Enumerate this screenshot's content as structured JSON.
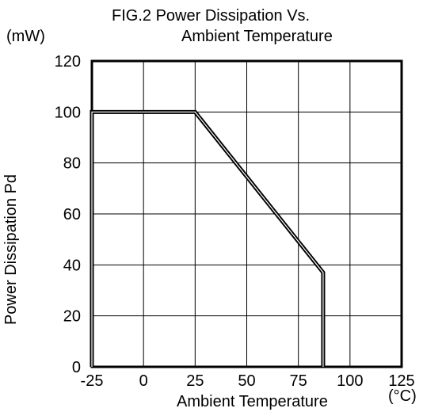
{
  "chart_data": {
    "type": "line",
    "title_line1": "FIG.2  Power Dissipation Vs.",
    "title_line2": "Ambient Temperature",
    "ylabel": "Power Dissipation Pd",
    "yunit": "(mW)",
    "xlabel": "Ambient Temperature",
    "xunit": "(°C)",
    "xlim": [
      -25,
      125
    ],
    "ylim": [
      0,
      120
    ],
    "xticks": [
      -25,
      0,
      25,
      50,
      75,
      100,
      125
    ],
    "yticks": [
      0,
      20,
      40,
      60,
      80,
      100,
      120
    ],
    "grid": true,
    "series": [
      {
        "x": [
          -25,
          -25,
          25,
          87,
          87
        ],
        "y": [
          0,
          100,
          100,
          37,
          0
        ]
      }
    ]
  }
}
